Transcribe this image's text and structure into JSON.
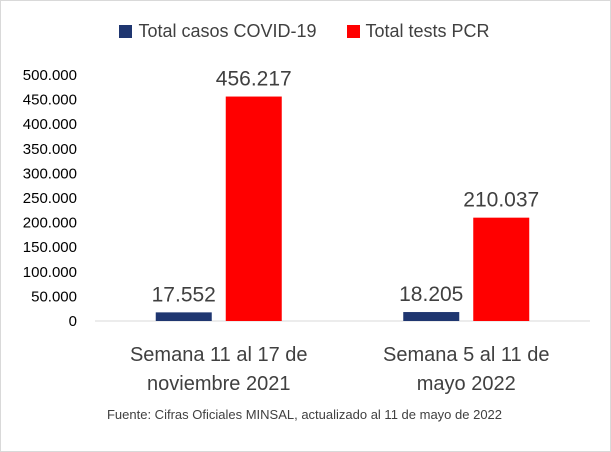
{
  "chart_data": {
    "type": "bar",
    "categories": [
      [
        "Semana 11 al 17 de",
        "noviembre 2021"
      ],
      [
        "Semana 5 al 11 de",
        "mayo 2022"
      ]
    ],
    "series": [
      {
        "name": "Total casos COVID-19",
        "color": "#1f3670",
        "values": [
          17552,
          18205
        ],
        "labels": [
          "17.552",
          "18.205"
        ]
      },
      {
        "name": "Total tests PCR",
        "color": "#ff0000",
        "values": [
          456217,
          210037
        ],
        "labels": [
          "456.217",
          "210.037"
        ]
      }
    ],
    "ylim": [
      0,
      500000
    ],
    "yticks": [
      0,
      50000,
      100000,
      150000,
      200000,
      250000,
      300000,
      350000,
      400000,
      450000,
      500000
    ],
    "ytick_labels": [
      "0",
      "50.000",
      "100.000",
      "150.000",
      "200.000",
      "250.000",
      "300.000",
      "350.000",
      "400.000",
      "450.000",
      "500.000"
    ],
    "grid": false,
    "legend_position": "top",
    "source": "Fuente: Cifras Oficiales MINSAL, actualizado al 11 de mayo de 2022"
  }
}
